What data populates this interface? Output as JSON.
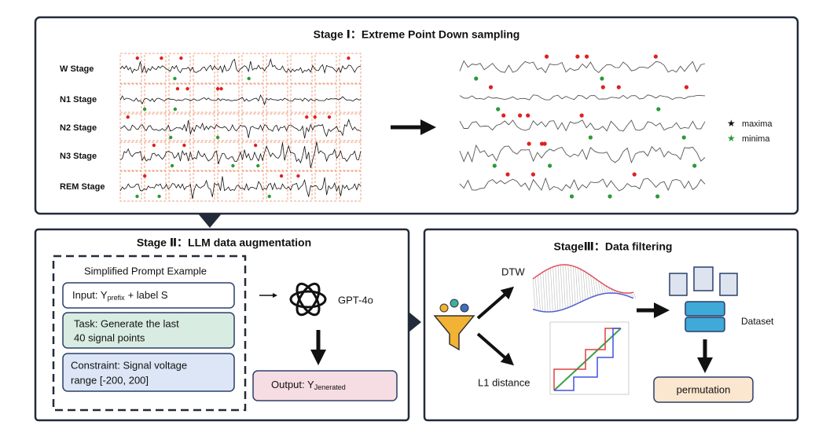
{
  "stage1": {
    "title": "Stage Ⅰ：Extreme Point Down sampling",
    "labels": [
      "W Stage",
      "N1  Stage",
      "N2 Stage",
      "N3 Stage",
      "REM Stage"
    ],
    "legend": [
      "maxima",
      "minima"
    ]
  },
  "stage2": {
    "title": "Stage Ⅱ：LLM data augmentation",
    "prompt_title": "Simplified Prompt Example",
    "input": {
      "text": "Input: Y",
      "subscript": "prefix",
      "suffix": "+ label S"
    },
    "task": [
      "Task: Generate the last",
      "40 signal points"
    ],
    "constraint": [
      "Constraint: Signal voltage",
      "range [-200, 200]"
    ],
    "model": "GPT-4o",
    "output": {
      "text": "Output: Y",
      "subscript": "Jenerated"
    }
  },
  "stage3": {
    "title": "StageⅢ：Data filtering",
    "dtw": "DTW",
    "l1": "L1 distance",
    "dataset": "Dataset",
    "permutation": "permutation"
  }
}
